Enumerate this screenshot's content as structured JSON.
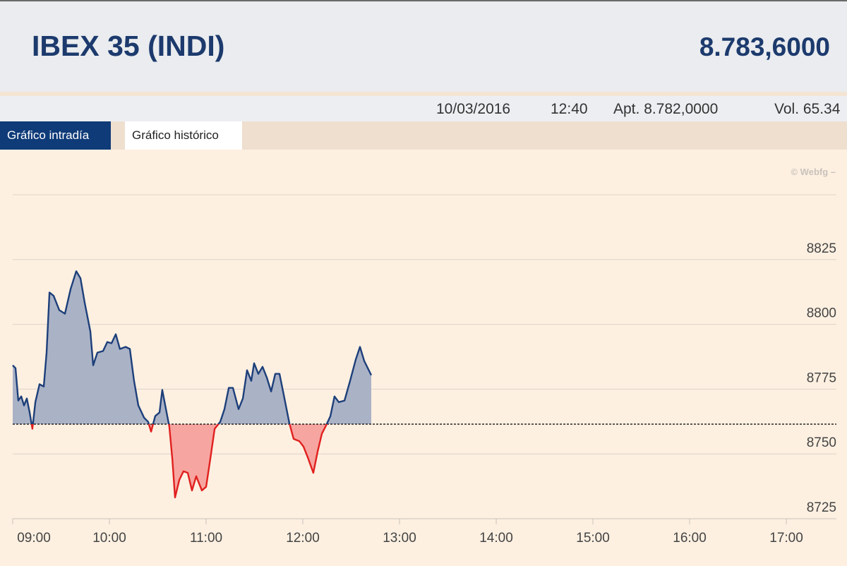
{
  "header": {
    "title": "IBEX 35 (INDI)",
    "price": "8.783,6000"
  },
  "info": {
    "date": "10/03/2016",
    "time": "12:40",
    "open": "Apt. 8.782,0000",
    "volume": "Vol. 65.34"
  },
  "tabs": [
    "Gráfico intradía",
    "Gráfico histórico"
  ],
  "watermark": "© Webfg –",
  "chart_data": {
    "type": "line",
    "x": [
      9.0,
      9.029,
      9.058,
      9.088,
      9.117,
      9.146,
      9.175,
      9.204,
      9.234,
      9.277,
      9.321,
      9.35,
      9.38,
      9.423,
      9.482,
      9.54,
      9.599,
      9.657,
      9.701,
      9.745,
      9.803,
      9.832,
      9.876,
      9.934,
      9.978,
      10.022,
      10.066,
      10.109,
      10.168,
      10.212,
      10.255,
      10.299,
      10.358,
      10.401,
      10.431,
      10.474,
      10.518,
      10.547,
      10.591,
      10.62,
      10.65,
      10.679,
      10.723,
      10.766,
      10.81,
      10.854,
      10.898,
      10.956,
      11.0,
      11.044,
      11.088,
      11.146,
      11.19,
      11.234,
      11.277,
      11.336,
      11.38,
      11.423,
      11.467,
      11.496,
      11.54,
      11.584,
      11.628,
      11.672,
      11.715,
      11.759,
      11.803,
      11.861,
      11.905,
      11.964,
      12.007,
      12.051,
      12.109,
      12.153,
      12.197,
      12.241,
      12.285,
      12.328,
      12.372,
      12.431,
      12.489,
      12.547,
      12.591,
      12.635,
      12.708
    ],
    "series": [
      {
        "color": "#1d3f7a",
        "below_color": "#e0201e",
        "fill": "#aab2c6",
        "below_fill": "#f7a5a0",
        "values": [
          8784.2,
          8783.1,
          8770.6,
          8772.2,
          8768.7,
          8771.4,
          8766.0,
          8759.7,
          8770.0,
          8776.9,
          8776.0,
          8789.1,
          8812.3,
          8811.0,
          8805.5,
          8804.1,
          8813.7,
          8820.5,
          8817.8,
          8808.2,
          8797.3,
          8784.2,
          8789.1,
          8789.7,
          8793.2,
          8792.7,
          8796.2,
          8790.5,
          8791.3,
          8790.5,
          8778.2,
          8768.7,
          8764.0,
          8762.4,
          8758.6,
          8764.6,
          8766.0,
          8774.7,
          8766.0,
          8760.5,
          8748.2,
          8733.2,
          8740.0,
          8743.3,
          8742.7,
          8735.9,
          8741.4,
          8735.9,
          8737.3,
          8748.2,
          8759.7,
          8762.4,
          8767.3,
          8775.5,
          8775.5,
          8767.3,
          8771.4,
          8782.3,
          8778.2,
          8785.0,
          8780.9,
          8783.6,
          8779.5,
          8774.1,
          8780.9,
          8780.9,
          8772.8,
          8761.8,
          8755.8,
          8754.9,
          8752.8,
          8748.7,
          8742.7,
          8750.9,
          8757.8,
          8761.0,
          8764.6,
          8772.2,
          8770.0,
          8770.6,
          8778.2,
          8786.4,
          8791.3,
          8785.9,
          8780.4
        ]
      }
    ],
    "reference": 8761.5,
    "xlim": [
      9,
      17.518
    ],
    "xticks": [
      {
        "value": 9,
        "label": "09:00"
      },
      {
        "value": 10,
        "label": "10:00"
      },
      {
        "value": 11,
        "label": "11:00"
      },
      {
        "value": 12,
        "label": "12:00"
      },
      {
        "value": 13,
        "label": "13:00"
      },
      {
        "value": 14,
        "label": "14:00"
      },
      {
        "value": 15,
        "label": "15:00"
      },
      {
        "value": 16,
        "label": "16:00"
      },
      {
        "value": 17,
        "label": "17:00"
      }
    ],
    "ylim": [
      8725,
      8850
    ],
    "yticks": [
      8725,
      8750,
      8775,
      8800,
      8825
    ],
    "grid": true
  }
}
